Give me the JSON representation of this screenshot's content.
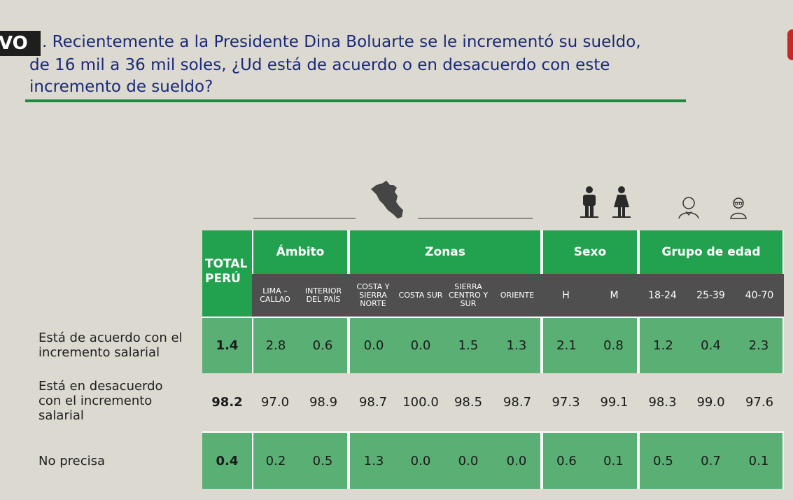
{
  "header": {
    "tag": "VO",
    "question_lines": [
      ". Recientemente a la Presidente Dina Boluarte se le incrementó su sueldo,",
      "de 16 mil a 36 mil soles, ¿Ud está de acuerdo o en desacuerdo con este",
      "incremento de sueldo?"
    ]
  },
  "colors": {
    "green_header": "#22a24e",
    "green_row": "#5aaf74",
    "gray_subheader": "#4f4f4f",
    "background": "#dcd9d0",
    "question_text": "#1b2a7a"
  },
  "icons": [
    "peru-map-icon",
    "man-icon",
    "woman-icon",
    "young-person-icon",
    "older-person-icon"
  ],
  "chart_data": {
    "type": "table",
    "total_label": "TOTAL PERÚ",
    "groups": [
      {
        "name": "Ámbito",
        "columns": [
          "LIMA – CALLAO",
          "INTERIOR DEL PAÍS"
        ]
      },
      {
        "name": "Zonas",
        "columns": [
          "COSTA Y SIERRA NORTE",
          "COSTA SUR",
          "SIERRA CENTRO Y SUR",
          "ORIENTE"
        ]
      },
      {
        "name": "Sexo",
        "columns": [
          "H",
          "M"
        ]
      },
      {
        "name": "Grupo de edad",
        "columns": [
          "18-24",
          "25-39",
          "40-70"
        ]
      }
    ],
    "rows": [
      {
        "label": "Está de acuerdo con el\nincremento salarial",
        "total": "1.4",
        "values": [
          "2.8",
          "0.6",
          "0.0",
          "0.0",
          "1.5",
          "1.3",
          "2.1",
          "0.8",
          "1.2",
          "0.4",
          "2.3"
        ]
      },
      {
        "label": "Está en desacuerdo\ncon el incremento\nsalarial",
        "total": "98.2",
        "values": [
          "97.0",
          "98.9",
          "98.7",
          "100.0",
          "98.5",
          "98.7",
          "97.3",
          "99.1",
          "98.3",
          "99.0",
          "97.6"
        ]
      },
      {
        "label": "No precisa",
        "total": "0.4",
        "values": [
          "0.2",
          "0.5",
          "1.3",
          "0.0",
          "0.0",
          "0.0",
          "0.6",
          "0.1",
          "0.5",
          "0.7",
          "0.1"
        ]
      }
    ]
  }
}
